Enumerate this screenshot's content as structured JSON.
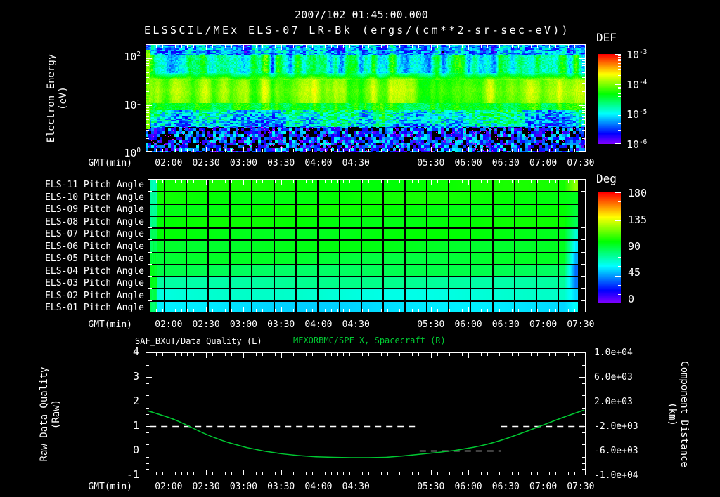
{
  "header": {
    "datetime": "2007/102 01:45:00.000",
    "source": "ELSSCIL/MEx ELS-07 LR-Bk",
    "units": "(ergs/(cm**2-sr-sec-eV))"
  },
  "colors": {
    "background": "#000000",
    "text": "#ffffff",
    "title_right_green": "#00cc33",
    "curve_green": "#00c832",
    "quality_line_white": "#ffffff"
  },
  "time_axis": {
    "label": "GMT(min)",
    "tick_labels": [
      "02:00",
      "02:30",
      "03:00",
      "03:30",
      "04:00",
      "04:30",
      "",
      "05:30",
      "06:00",
      "06:30",
      "07:00",
      "07:30"
    ],
    "tick_minutes": [
      120,
      150,
      180,
      210,
      240,
      270,
      300,
      330,
      360,
      390,
      420,
      450
    ],
    "start_min": 101.5,
    "end_min": 454
  },
  "spectrogram_panel": {
    "y_label_line1": "Electron Energy",
    "y_label_line2": "(eV)",
    "y_ticks": [
      {
        "base": "10",
        "exp": "2"
      },
      {
        "base": "10",
        "exp": "1"
      },
      {
        "base": "10",
        "exp": "0"
      }
    ],
    "colorbar": {
      "title": "DEF",
      "ticks": [
        {
          "base": "10",
          "exp": "-3"
        },
        {
          "base": "10",
          "exp": "-4"
        },
        {
          "base": "10",
          "exp": "-5"
        },
        {
          "base": "10",
          "exp": "-6"
        }
      ]
    }
  },
  "pitch_panel": {
    "row_labels": [
      "ELS-11 Pitch Angle",
      "ELS-10 Pitch Angle",
      "ELS-09 Pitch Angle",
      "ELS-08 Pitch Angle",
      "ELS-07 Pitch Angle",
      "ELS-06 Pitch Angle",
      "ELS-05 Pitch Angle",
      "ELS-04 Pitch Angle",
      "ELS-03 Pitch Angle",
      "ELS-02 Pitch Angle",
      "ELS-01 Pitch Angle"
    ],
    "colorbar": {
      "title": "Deg",
      "ticks": [
        "180",
        "135",
        "90",
        "45",
        "0"
      ]
    }
  },
  "bottom_panel": {
    "title_left": "SAF_BXuT/Data Quality (L)",
    "title_right": "MEXORBMC/SPF X, Spacecraft (R)",
    "left_axis": {
      "label_line1": "Raw Data Quality",
      "label_line2": "(Raw)",
      "ticks": [
        "4",
        "3",
        "2",
        "1",
        "0",
        "-1"
      ],
      "min": -1,
      "max": 4
    },
    "right_axis": {
      "label_line1": "Component Distance",
      "label_line2": "(km)",
      "ticks": [
        "1.0e+04",
        "6.0e+03",
        "2.0e+03",
        "-2.0e+03",
        "-6.0e+03",
        "-1.0e+04"
      ],
      "min": -10000,
      "max": 10000
    }
  },
  "chart_data": [
    {
      "type": "heatmap",
      "name": "electron-energy-spectrogram",
      "title": "ELSSCIL/MEx ELS-07 LR-Bk (ergs/(cm**2-sr-sec-eV))",
      "xlabel": "GMT(min)",
      "x_range": [
        "01:45",
        "07:34"
      ],
      "ylabel": "Electron Energy (eV)",
      "y_scale": "log",
      "y_range": [
        1,
        200
      ],
      "colorbar_label": "DEF",
      "color_scale": "log",
      "color_range": [
        1e-06,
        0.001
      ],
      "bands": [
        {
          "energy_eV": [
            50,
            200
          ],
          "log10_flux": -4.85,
          "appearance": "blue with vertical striations"
        },
        {
          "energy_eV": [
            8,
            50
          ],
          "log10_flux": -4.0,
          "appearance": "bright green with yellow-green patches"
        },
        {
          "energy_eV": [
            3,
            8
          ],
          "log10_flux": -4.9,
          "appearance": "cyan-blue speckle"
        },
        {
          "energy_eV": [
            1,
            3
          ],
          "log10_flux": -5.75,
          "appearance": "dark violet/black speckle with magenta dots"
        }
      ]
    },
    {
      "type": "heatmap",
      "name": "pitch-angle-panel",
      "rows": [
        "ELS-11",
        "ELS-10",
        "ELS-09",
        "ELS-08",
        "ELS-07",
        "ELS-06",
        "ELS-05",
        "ELS-04",
        "ELS-03",
        "ELS-02",
        "ELS-01"
      ],
      "colorbar_label": "Deg",
      "color_range": [
        0,
        180
      ],
      "row_mean_deg": [
        102,
        101,
        100,
        100,
        98,
        96,
        93,
        87,
        77,
        67,
        56
      ],
      "row_right_edge_deg": [
        123,
        96,
        92,
        88,
        68,
        58,
        48,
        38,
        40,
        55,
        62
      ],
      "row_left_edge_deg": [
        72,
        74,
        76,
        80,
        85,
        88,
        92,
        95,
        96,
        90,
        85
      ]
    },
    {
      "type": "line",
      "name": "quality-and-spacecraft-distance",
      "xlabel": "GMT(min)",
      "x_ticks": [
        "02:00",
        "02:30",
        "03:00",
        "03:30",
        "04:00",
        "04:30",
        "05:30",
        "06:00",
        "06:30",
        "07:00",
        "07:30"
      ],
      "left_axis": {
        "label": "Raw Data Quality (Raw)",
        "range": [
          -1,
          4
        ]
      },
      "right_axis": {
        "label": "Component Distance (km)",
        "range": [
          -10000,
          10000
        ]
      },
      "series": [
        {
          "name": "SAF_BXuT/Data Quality (L)",
          "axis": "left",
          "color": "#ffffff",
          "style": "dashed",
          "segments": [
            {
              "t_min": [
                105,
                321
              ],
              "t": [
                "01:45",
                "05:21"
              ],
              "value": 1
            },
            {
              "t_min": [
                321,
                386
              ],
              "t": [
                "05:21",
                "06:26"
              ],
              "value": 0
            },
            {
              "t_min": [
                386,
                453
              ],
              "t": [
                "06:26",
                "07:33"
              ],
              "value": 1
            }
          ]
        },
        {
          "name": "MEXORBMC/SPF X, Spacecraft (R)",
          "axis": "right",
          "color": "#00c832",
          "style": "solid",
          "points_min_km": [
            [
              103,
              515
            ],
            [
              111,
              0
            ],
            [
              126,
              -970
            ],
            [
              154,
              -3800
            ],
            [
              182,
              -5550
            ],
            [
              210,
              -6570
            ],
            [
              238,
              -7030
            ],
            [
              266,
              -7150
            ],
            [
              294,
              -7150
            ],
            [
              322,
              -6570
            ],
            [
              350,
              -6000
            ],
            [
              378,
              -4900
            ],
            [
              407,
              -2850
            ],
            [
              435,
              -630
            ],
            [
              453,
              630
            ]
          ]
        }
      ]
    }
  ]
}
